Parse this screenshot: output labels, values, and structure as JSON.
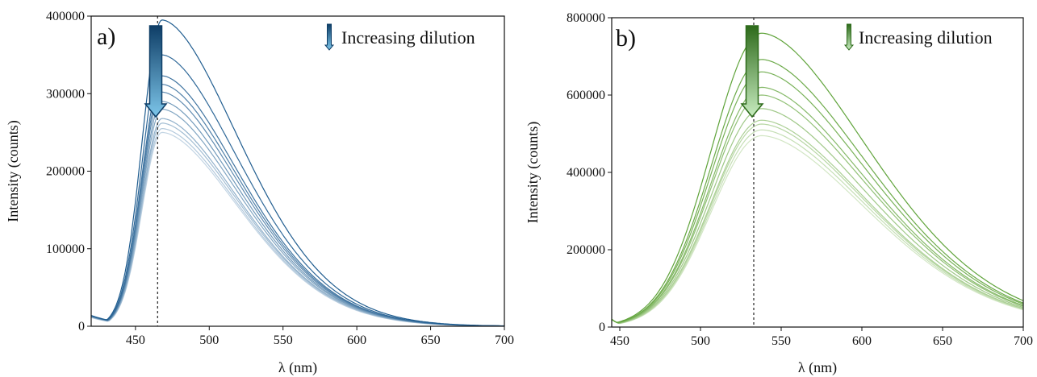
{
  "chart_data": [
    {
      "panel": "a)",
      "type": "line",
      "xlabel": "λ (nm)",
      "ylabel": "Intensity (counts)",
      "xlim": [
        420,
        700
      ],
      "ylim": [
        0,
        400000
      ],
      "xticks": [
        450,
        500,
        550,
        600,
        650,
        700
      ],
      "yticks": [
        0,
        100000,
        200000,
        300000,
        400000
      ],
      "legend": "Increasing dilution",
      "legend_position": "top-right",
      "peak_marker_x": 465,
      "grid": false,
      "colors": {
        "dark": "#1f5c8f",
        "light": "#c3d5e4",
        "arrow_top": "#0e3d66",
        "arrow_bottom": "#7dc6ea"
      },
      "series": [
        {
          "peak_x": 468,
          "peak_y": 395000
        },
        {
          "peak_x": 468,
          "peak_y": 350000
        },
        {
          "peak_x": 468,
          "peak_y": 323000
        },
        {
          "peak_x": 468,
          "peak_y": 312000
        },
        {
          "peak_x": 468,
          "peak_y": 302000
        },
        {
          "peak_x": 468,
          "peak_y": 290000
        },
        {
          "peak_x": 468,
          "peak_y": 280000
        },
        {
          "peak_x": 468,
          "peak_y": 268000
        },
        {
          "peak_x": 468,
          "peak_y": 262000
        },
        {
          "peak_x": 468,
          "peak_y": 255000
        },
        {
          "peak_x": 468,
          "peak_y": 250000
        }
      ]
    },
    {
      "panel": "b)",
      "type": "line",
      "xlabel": "λ (nm)",
      "ylabel": "Intensity (counts)",
      "xlim": [
        445,
        700
      ],
      "ylim": [
        0,
        800000
      ],
      "xticks": [
        450,
        500,
        550,
        600,
        650,
        700
      ],
      "yticks": [
        0,
        200000,
        400000,
        600000,
        800000
      ],
      "legend": "Increasing dilution",
      "legend_position": "top-right",
      "peak_marker_x": 533,
      "grid": false,
      "colors": {
        "dark": "#5fa33a",
        "light": "#d2e6c4",
        "arrow_top": "#2d6a1a",
        "arrow_bottom": "#c8ecc0"
      },
      "series": [
        {
          "peak_x": 538,
          "peak_y": 760000
        },
        {
          "peak_x": 538,
          "peak_y": 692000
        },
        {
          "peak_x": 538,
          "peak_y": 660000
        },
        {
          "peak_x": 538,
          "peak_y": 620000
        },
        {
          "peak_x": 538,
          "peak_y": 600000
        },
        {
          "peak_x": 538,
          "peak_y": 565000
        },
        {
          "peak_x": 538,
          "peak_y": 535000
        },
        {
          "peak_x": 538,
          "peak_y": 525000
        },
        {
          "peak_x": 538,
          "peak_y": 510000
        },
        {
          "peak_x": 538,
          "peak_y": 495000
        }
      ]
    }
  ]
}
